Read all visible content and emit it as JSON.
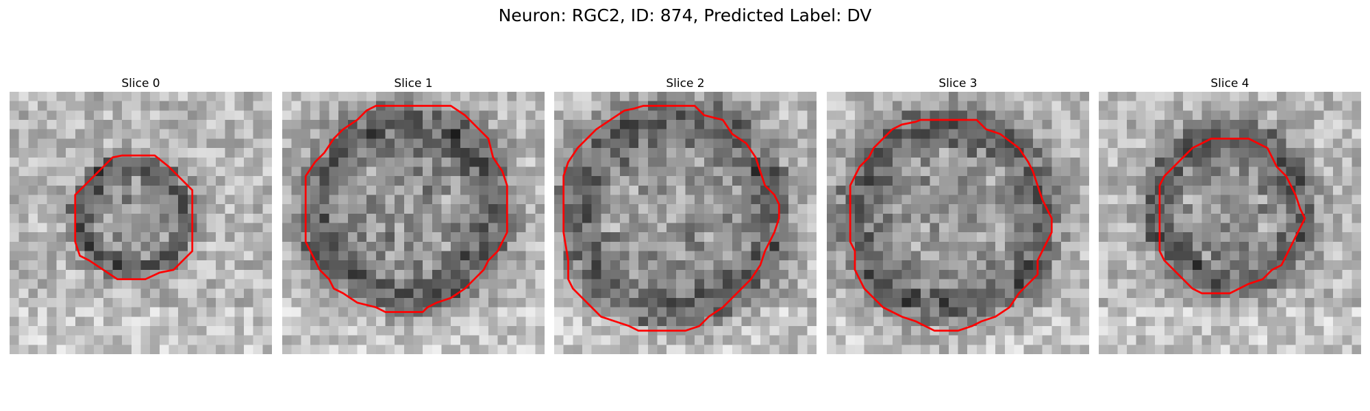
{
  "figure": {
    "title": "Neuron: RGC2, ID: 874, Predicted Label: DV"
  },
  "panels": [
    {
      "title": "Slice 0",
      "contour": [
        [
          12,
          6.8
        ],
        [
          15.5,
          6.8
        ],
        [
          17,
          8
        ],
        [
          18.5,
          9.5
        ],
        [
          19.5,
          10.5
        ],
        [
          19.5,
          17
        ],
        [
          18.5,
          18
        ],
        [
          17.5,
          19
        ],
        [
          16,
          19.3
        ],
        [
          14.5,
          20
        ],
        [
          11.5,
          20
        ],
        [
          10,
          19
        ],
        [
          8.5,
          18
        ],
        [
          7.5,
          17.5
        ],
        [
          7,
          16
        ],
        [
          7,
          11
        ],
        [
          8.5,
          9.5
        ],
        [
          10,
          8
        ],
        [
          11,
          7
        ]
      ],
      "blob": {
        "cx": 13.2,
        "cy": 13.3,
        "r": 6.5,
        "depth": 0.55
      }
    },
    {
      "title": "Slice 1",
      "contour": [
        [
          10,
          1.5
        ],
        [
          18,
          1.5
        ],
        [
          19.5,
          2.5
        ],
        [
          21,
          4
        ],
        [
          22,
          5
        ],
        [
          22.5,
          7
        ],
        [
          23.5,
          8.5
        ],
        [
          24,
          10
        ],
        [
          24,
          15
        ],
        [
          23.5,
          16
        ],
        [
          23,
          17
        ],
        [
          22,
          18
        ],
        [
          21.5,
          19
        ],
        [
          20.5,
          20
        ],
        [
          19.5,
          21
        ],
        [
          18,
          22
        ],
        [
          16.5,
          22.5
        ],
        [
          15.5,
          23
        ],
        [
          15,
          23.5
        ],
        [
          11,
          23.5
        ],
        [
          10,
          23
        ],
        [
          8,
          22.5
        ],
        [
          6.5,
          21.5
        ],
        [
          5.5,
          21
        ],
        [
          5,
          20
        ],
        [
          4,
          19
        ],
        [
          3.5,
          18
        ],
        [
          3,
          17
        ],
        [
          2.5,
          16
        ],
        [
          2.5,
          9
        ],
        [
          3.5,
          7.5
        ],
        [
          4.5,
          6.5
        ],
        [
          5.5,
          5
        ],
        [
          6.5,
          4
        ],
        [
          8,
          3
        ],
        [
          9,
          2
        ]
      ],
      "blob": {
        "cx": 13.2,
        "cy": 12.5,
        "r": 11,
        "depth": 0.55
      }
    },
    {
      "title": "Slice 2",
      "contour": [
        [
          9.5,
          1.5
        ],
        [
          15,
          1.5
        ],
        [
          16,
          2.5
        ],
        [
          18,
          3
        ],
        [
          19,
          4.5
        ],
        [
          20.5,
          5.5
        ],
        [
          21.5,
          7
        ],
        [
          22,
          8.5
        ],
        [
          22.5,
          10
        ],
        [
          23.5,
          11
        ],
        [
          24,
          12
        ],
        [
          24,
          13.5
        ],
        [
          23.5,
          15
        ],
        [
          23,
          16
        ],
        [
          22.5,
          17
        ],
        [
          22,
          18.5
        ],
        [
          21,
          20
        ],
        [
          20,
          21
        ],
        [
          19,
          22
        ],
        [
          18,
          23
        ],
        [
          16.5,
          24
        ],
        [
          15.5,
          25
        ],
        [
          14,
          25.5
        ],
        [
          9,
          25.5
        ],
        [
          8,
          25
        ],
        [
          6.5,
          24.5
        ],
        [
          5,
          24
        ],
        [
          4,
          23
        ],
        [
          3,
          22
        ],
        [
          2,
          21
        ],
        [
          1.5,
          20
        ],
        [
          1.5,
          18
        ],
        [
          1,
          15
        ],
        [
          1,
          9
        ],
        [
          1.5,
          7.5
        ],
        [
          2.5,
          6
        ],
        [
          3.5,
          5
        ],
        [
          4.5,
          4
        ],
        [
          6,
          3
        ],
        [
          7.5,
          2
        ],
        [
          8.5,
          1.8
        ]
      ],
      "blob": {
        "cx": 12.8,
        "cy": 13,
        "r": 12,
        "depth": 0.5
      }
    },
    {
      "title": "Slice 3",
      "contour": [
        [
          10,
          3
        ],
        [
          16,
          3
        ],
        [
          17,
          4
        ],
        [
          18.5,
          4.5
        ],
        [
          20.5,
          6
        ],
        [
          21.5,
          7.5
        ],
        [
          22,
          8.5
        ],
        [
          22.5,
          10
        ],
        [
          23,
          11.5
        ],
        [
          23.5,
          12.5
        ],
        [
          24,
          13.5
        ],
        [
          24,
          15
        ],
        [
          23.5,
          16
        ],
        [
          23,
          17
        ],
        [
          22.5,
          18
        ],
        [
          22.5,
          19.5
        ],
        [
          21.5,
          20.5
        ],
        [
          20.5,
          21.5
        ],
        [
          19.5,
          23
        ],
        [
          18,
          24
        ],
        [
          16.5,
          24.5
        ],
        [
          15.5,
          25
        ],
        [
          14,
          25.5
        ],
        [
          11.5,
          25.5
        ],
        [
          10.5,
          25
        ],
        [
          9.5,
          24.5
        ],
        [
          8,
          24
        ],
        [
          6,
          23
        ],
        [
          5,
          22
        ],
        [
          4,
          21
        ],
        [
          3.5,
          20
        ],
        [
          3,
          19
        ],
        [
          3,
          17
        ],
        [
          2.5,
          16
        ],
        [
          2.5,
          12
        ],
        [
          2.5,
          10
        ],
        [
          3.5,
          8
        ],
        [
          4.5,
          7
        ],
        [
          5,
          6
        ],
        [
          6,
          5
        ],
        [
          7,
          4
        ],
        [
          8,
          3.5
        ],
        [
          9.5,
          3.2
        ]
      ],
      "blob": {
        "cx": 13,
        "cy": 13.5,
        "r": 11.5,
        "depth": 0.5
      }
    },
    {
      "title": "Slice 4",
      "contour": [
        [
          12,
          5
        ],
        [
          16,
          5
        ],
        [
          17,
          5.5
        ],
        [
          18,
          6
        ],
        [
          18.5,
          7
        ],
        [
          19,
          8
        ],
        [
          20,
          9
        ],
        [
          20.5,
          10
        ],
        [
          21,
          11
        ],
        [
          21.5,
          12.5
        ],
        [
          22,
          13.5
        ],
        [
          21.5,
          14.5
        ],
        [
          21,
          15.5
        ],
        [
          20.5,
          16.5
        ],
        [
          20,
          17.5
        ],
        [
          19.5,
          18.5
        ],
        [
          18.5,
          19
        ],
        [
          17.5,
          20
        ],
        [
          16,
          20.5
        ],
        [
          15,
          21
        ],
        [
          14,
          21.5
        ],
        [
          11,
          21.5
        ],
        [
          10,
          21
        ],
        [
          9,
          20
        ],
        [
          8,
          19
        ],
        [
          7,
          18
        ],
        [
          6.5,
          17
        ],
        [
          6.5,
          10
        ],
        [
          7,
          9
        ],
        [
          8,
          8
        ],
        [
          9,
          7
        ],
        [
          10,
          6
        ],
        [
          11,
          5.5
        ]
      ],
      "blob": {
        "cx": 14,
        "cy": 12.5,
        "r": 9,
        "depth": 0.55
      }
    }
  ],
  "colors": {
    "contour": "#ff0000",
    "background": "#ffffff"
  }
}
